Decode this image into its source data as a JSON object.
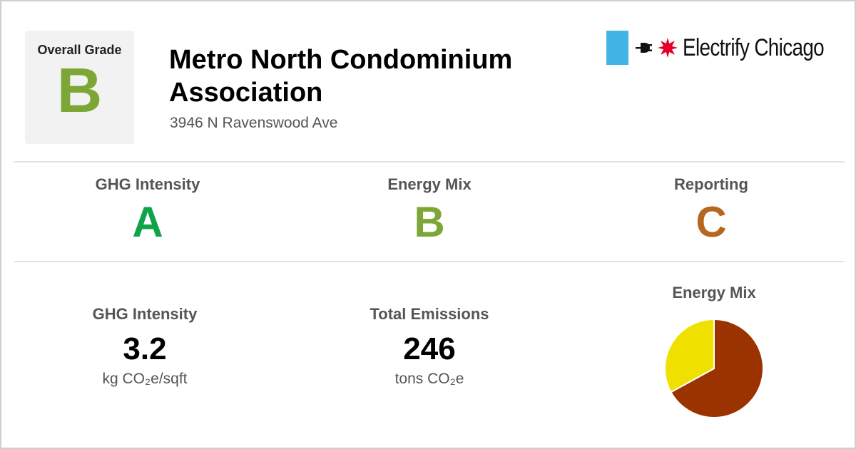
{
  "overall": {
    "title": "Overall Grade",
    "grade": "B",
    "color": "#7ca635"
  },
  "building": {
    "name": "Metro North Condominium Association",
    "address": "3946 N Ravenswood Ave"
  },
  "logo": {
    "text": "Electrify Chicago",
    "bar_color": "#41b6e6",
    "star_color": "#e4002b",
    "icons": [
      "plug-icon",
      "star-icon"
    ]
  },
  "grades": [
    {
      "label": "GHG Intensity",
      "grade": "A",
      "color": "#0fa34a"
    },
    {
      "label": "Energy Mix",
      "grade": "B",
      "color": "#7ca635"
    },
    {
      "label": "Reporting",
      "grade": "C",
      "color": "#b5671f"
    }
  ],
  "stats": [
    {
      "label": "GHG Intensity",
      "value": "3.2",
      "unit": "kg CO₂e/sqft"
    },
    {
      "label": "Total Emissions",
      "value": "246",
      "unit": "tons CO₂e"
    }
  ],
  "energy_mix": {
    "title": "Energy Mix",
    "slices": [
      {
        "share": 0.67,
        "color": "#9b3300"
      },
      {
        "share": 0.33,
        "color": "#f0e000"
      }
    ]
  }
}
